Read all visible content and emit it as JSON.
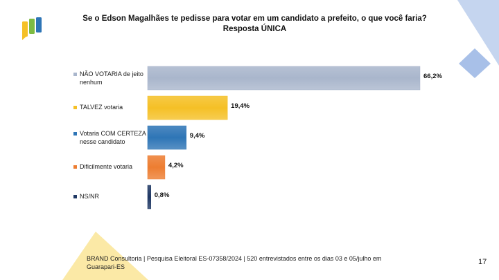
{
  "slide": {
    "title": "Se o Edson Magalhães te pedisse para votar em um candidato  a prefeito, o que você faria? Resposta ÚNICA",
    "footer": "BRAND Consultoria | Pesquisa Eleitoral ES-07358/2024 | 520 entrevistados entre os dias 03 e 05/julho em Guarapari-ES",
    "page_number": "17",
    "logo_icon": "speech-bubble-bars-logo"
  },
  "chart_data": {
    "type": "bar",
    "orientation": "horizontal",
    "categories": [
      "NÃO VOTARIA de jeito nenhum",
      "TALVEZ votaria",
      "Votaria COM CERTEZA nesse candidato",
      "Dificilmente votaria",
      "NS/NR"
    ],
    "values": [
      66.2,
      19.4,
      9.4,
      4.2,
      0.8
    ],
    "value_labels": [
      "66,2%",
      "19,4%",
      "9,4%",
      "4,2%",
      "0,8%"
    ],
    "colors": [
      "#a9b6cc",
      "#f5c026",
      "#2e75b6",
      "#ed7d31",
      "#1f3864"
    ],
    "unit": "%",
    "xlim": [
      0,
      66.2
    ],
    "grid": false,
    "legend": "left"
  },
  "colors": {
    "deco_blue": "#c5d5ef",
    "deco_blue_dark": "#a8c0e8",
    "deco_yellow": "#fbe9a6",
    "logo_yellow": "#f5c026",
    "logo_green": "#7dbb42",
    "logo_blue": "#2e75b6"
  }
}
